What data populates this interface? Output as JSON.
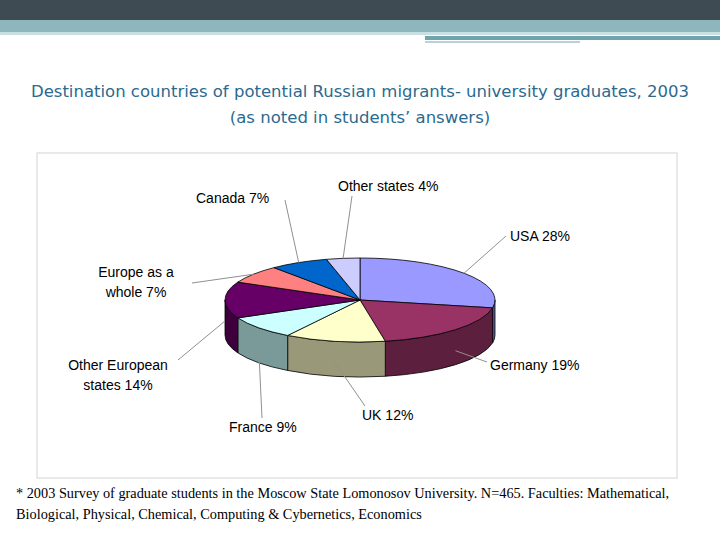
{
  "chart_data": {
    "type": "pie",
    "title": "Destination countries of potential Russian migrants- university graduates, 2003",
    "subtitle": "(as noted in students’ answers)",
    "categories": [
      "USA",
      "Germany",
      "UK",
      "France",
      "Other European states",
      "Europe as a whole",
      "Canada",
      "Other states"
    ],
    "values": [
      28,
      19,
      12,
      9,
      14,
      7,
      7,
      4
    ],
    "value_labels": [
      "28%",
      "19%",
      "12%",
      "9%",
      "14%",
      "7%",
      "7%",
      "4%"
    ],
    "colors": [
      "#9999ff",
      "#993366",
      "#ffffcc",
      "#ccffff",
      "#660066",
      "#ff8080",
      "#0066cc",
      "#ccccff"
    ],
    "data_labels": true,
    "annotations": [
      "* 2003 Survey of graduate students in the Moscow State Lomonosov University. N=465. Faculties: Mathematical,",
      "Biological, Physical, Chemical, Computing & Cybernetics, Economics"
    ]
  }
}
